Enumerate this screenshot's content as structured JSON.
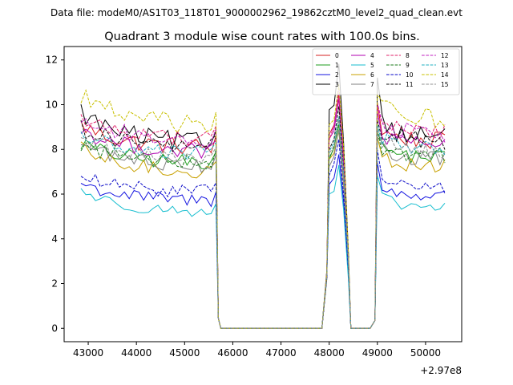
{
  "chart_data": {
    "type": "line",
    "suptitle": "Data file: modeM0/AS1T03_118T01_9000002962_19862cztM0_level2_quad_clean.evt",
    "title": "Quadrant 3 module wise count rates with 100.0s bins.",
    "xlabel": "",
    "ylabel": "",
    "x_offset_label": "+2.97e8",
    "xlim": [
      42500,
      50750
    ],
    "ylim": [
      -0.6,
      12.6
    ],
    "x_ticks": [
      43000,
      44000,
      45000,
      46000,
      47000,
      48000,
      49000,
      50000
    ],
    "x_tick_labels": [
      "43000",
      "44000",
      "45000",
      "46000",
      "47000",
      "48000",
      "49000",
      "50000"
    ],
    "y_ticks": [
      0,
      2,
      4,
      6,
      8,
      10,
      12
    ],
    "y_tick_labels": [
      "0",
      "2",
      "4",
      "6",
      "8",
      "10",
      "12"
    ],
    "legend_position": "top-right",
    "segments": [
      {
        "start": 42850,
        "end": 45650
      },
      {
        "start": 45750,
        "end": 47850
      },
      {
        "start": 48000,
        "end": 48400
      },
      {
        "start": 48450,
        "end": 48850
      },
      {
        "start": 49000,
        "end": 50450
      }
    ],
    "series": [
      {
        "name": "0",
        "color": "#d62020",
        "dash": "solid",
        "base": 8.2,
        "trend": 0.9,
        "decay": 0.6,
        "noise": 0.4,
        "peak": 10.6,
        "tail": 2.1
      },
      {
        "name": "1",
        "color": "#1f9e1f",
        "dash": "solid",
        "base": 7.5,
        "trend": 0.8,
        "decay": 0.6,
        "noise": 0.35,
        "peak": 9.2,
        "tail": 2.0
      },
      {
        "name": "2",
        "color": "#1515e0",
        "dash": "solid",
        "base": 5.8,
        "trend": 0.7,
        "decay": 0.5,
        "noise": 0.3,
        "peak": 7.8,
        "tail": 1.6
      },
      {
        "name": "3",
        "color": "#000000",
        "dash": "solid",
        "base": 8.4,
        "trend": 1.3,
        "decay": 0.7,
        "noise": 0.45,
        "peak": 11.8,
        "tail": 2.2
      },
      {
        "name": "4",
        "color": "#b000b0",
        "dash": "solid",
        "base": 8.0,
        "trend": 0.9,
        "decay": 0.6,
        "noise": 0.35,
        "peak": 10.2,
        "tail": 2.0
      },
      {
        "name": "5",
        "color": "#17becf",
        "dash": "solid",
        "base": 5.3,
        "trend": 0.9,
        "decay": 0.6,
        "noise": 0.25,
        "peak": 7.2,
        "tail": 1.8
      },
      {
        "name": "6",
        "color": "#c8a000",
        "dash": "solid",
        "base": 7.1,
        "trend": 0.9,
        "decay": 0.6,
        "noise": 0.35,
        "peak": 9.0,
        "tail": 2.0
      },
      {
        "name": "7",
        "color": "#808080",
        "dash": "solid",
        "base": 7.4,
        "trend": 0.9,
        "decay": 0.6,
        "noise": 0.35,
        "peak": 9.0,
        "tail": 2.0
      },
      {
        "name": "8",
        "color": "#e0206a",
        "dash": "dashed",
        "base": 8.6,
        "trend": 0.8,
        "decay": 0.6,
        "noise": 0.35,
        "peak": 10.4,
        "tail": 2.2
      },
      {
        "name": "9",
        "color": "#1a7a1a",
        "dash": "dashed",
        "base": 7.6,
        "trend": 0.6,
        "decay": 0.6,
        "noise": 0.35,
        "peak": 9.4,
        "tail": 2.0
      },
      {
        "name": "10",
        "color": "#0a0ac8",
        "dash": "dashed",
        "base": 6.2,
        "trend": 0.6,
        "decay": 0.5,
        "noise": 0.3,
        "peak": 8.4,
        "tail": 1.8
      },
      {
        "name": "11",
        "color": "#101010",
        "dash": "dashed",
        "base": 8.2,
        "trend": 0.8,
        "decay": 0.6,
        "noise": 0.4,
        "peak": 9.8,
        "tail": 2.1
      },
      {
        "name": "12",
        "color": "#c020c0",
        "dash": "dashed",
        "base": 8.5,
        "trend": 0.9,
        "decay": 0.6,
        "noise": 0.4,
        "peak": 10.6,
        "tail": 2.2
      },
      {
        "name": "13",
        "color": "#20b0c0",
        "dash": "dashed",
        "base": 7.9,
        "trend": 0.8,
        "decay": 0.6,
        "noise": 0.35,
        "peak": 9.6,
        "tail": 2.0
      },
      {
        "name": "14",
        "color": "#c8c000",
        "dash": "dashed",
        "base": 9.2,
        "trend": 1.3,
        "decay": 0.6,
        "noise": 0.45,
        "peak": 11.0,
        "tail": 2.4
      },
      {
        "name": "15",
        "color": "#909090",
        "dash": "dashed",
        "base": 7.7,
        "trend": 0.9,
        "decay": 0.6,
        "noise": 0.35,
        "peak": 9.4,
        "tail": 2.0
      }
    ]
  }
}
